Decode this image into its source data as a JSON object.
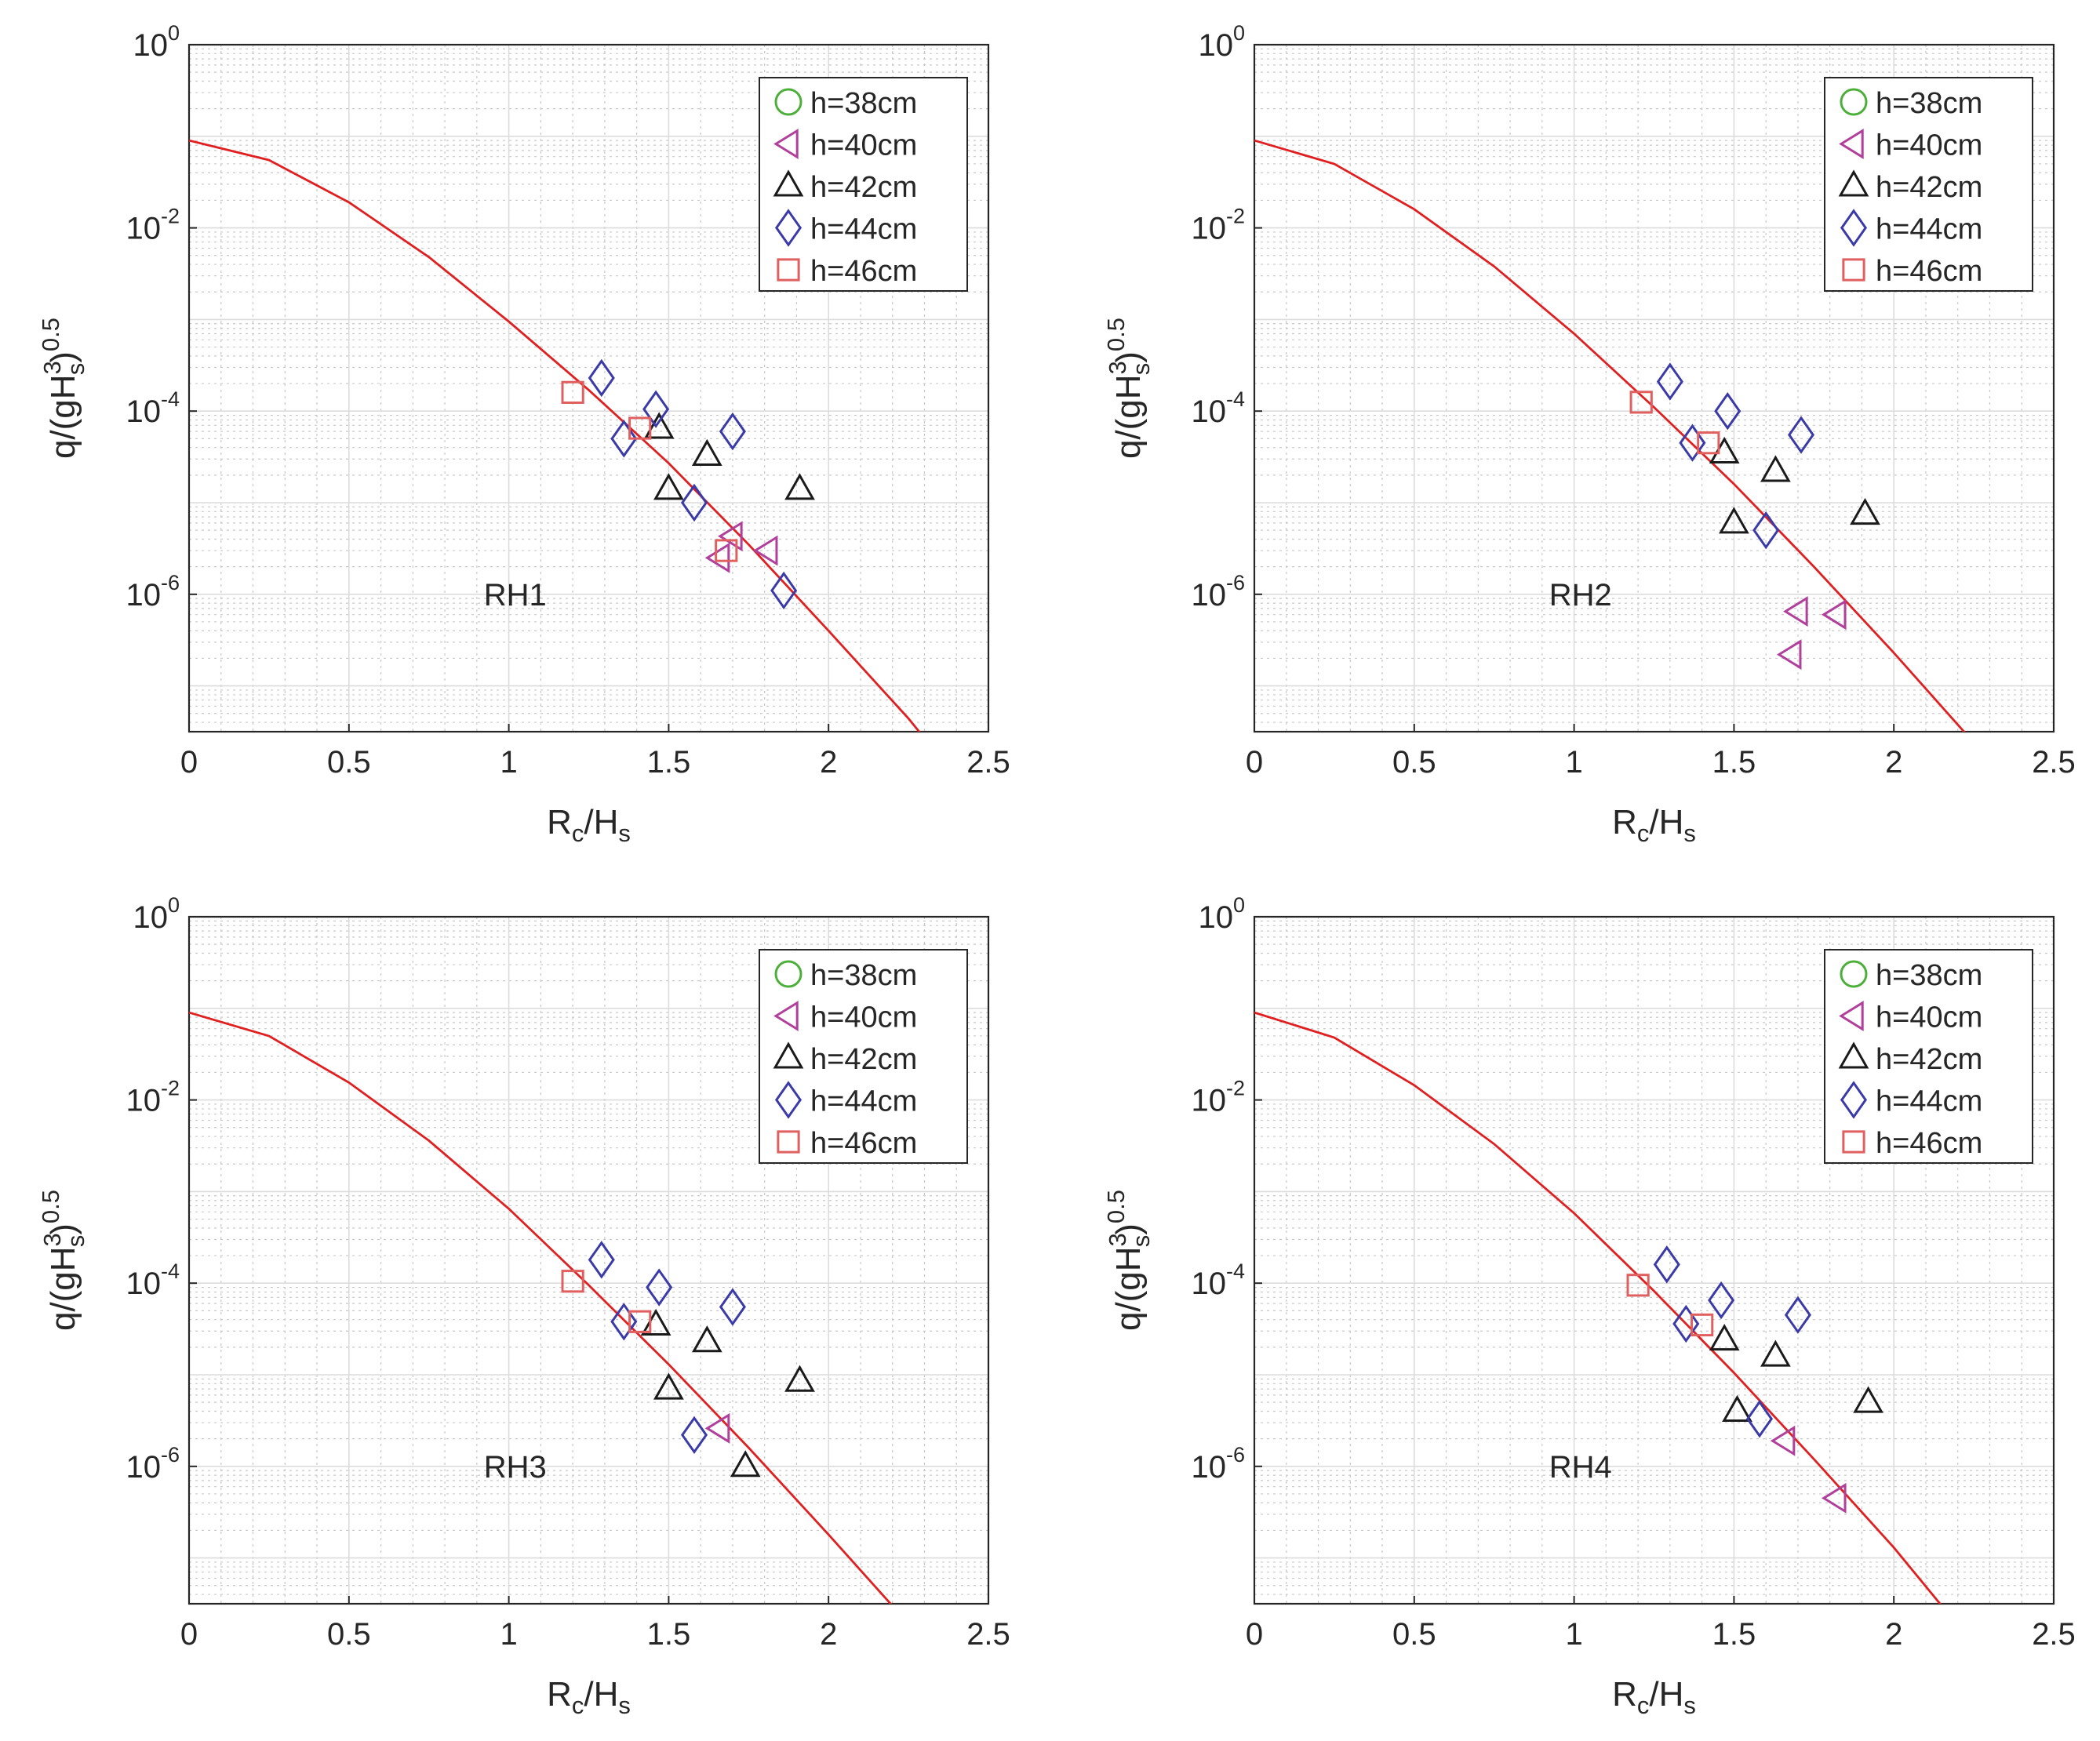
{
  "chart_data": [
    {
      "type": "scatter",
      "panel_label": "RH1",
      "xlim": [
        0,
        2.5
      ],
      "ylim_log10": [
        -7.5,
        0
      ],
      "y_scale": "log",
      "grid": "major and minor",
      "legend_position": "top-right",
      "xticks": [
        "0",
        "0.5",
        "1",
        "1.5",
        "2",
        "2.5"
      ],
      "yticks": [
        {
          "base": "10",
          "exp": "-6"
        },
        {
          "base": "10",
          "exp": "-4"
        },
        {
          "base": "10",
          "exp": "-2"
        },
        {
          "base": "10",
          "exp": "0"
        }
      ],
      "xlabel": {
        "main": "R",
        "sub1": "c",
        "mid": "/H",
        "sub2": "s"
      },
      "ylabel": {
        "pre": "q/(gH",
        "sup1": "3",
        "sub1": "s",
        "post": ")",
        "sup2": "0.5"
      },
      "series": [
        {
          "name": "h=38cm",
          "marker": "circle",
          "color": "#4caf3a",
          "points": []
        },
        {
          "name": "h=40cm",
          "marker": "triangle-left",
          "color": "#b0409c",
          "points": [
            [
              1.7,
              4.3e-06
            ],
            [
              1.81,
              3e-06
            ],
            [
              1.66,
              2.5e-06
            ]
          ]
        },
        {
          "name": "h=42cm",
          "marker": "triangle-up",
          "color": "#1a1a1a",
          "points": [
            [
              1.47,
              6.5e-05
            ],
            [
              1.62,
              3.3e-05
            ],
            [
              1.5,
              1.4e-05
            ],
            [
              1.91,
              1.4e-05
            ]
          ]
        },
        {
          "name": "h=44cm",
          "marker": "diamond",
          "color": "#3a3aa8",
          "points": [
            [
              1.29,
              0.00023
            ],
            [
              1.46,
              0.000105
            ],
            [
              1.7,
              6e-05
            ],
            [
              1.36,
              5e-05
            ],
            [
              1.58,
              1e-05
            ],
            [
              1.86,
              1.1e-06
            ]
          ]
        },
        {
          "name": "h=46cm",
          "marker": "square",
          "color": "#e06060",
          "points": [
            [
              1.2,
              0.00016
            ],
            [
              1.41,
              6.5e-05
            ],
            [
              1.68,
              3e-06
            ]
          ]
        }
      ],
      "curve": {
        "color": "#e02020",
        "x": [
          0,
          0.25,
          0.5,
          0.75,
          1.0,
          1.25,
          1.5,
          1.75,
          2.0,
          2.25,
          2.4
        ],
        "y": [
          0.09,
          0.055,
          0.019,
          0.0048,
          0.00095,
          0.00017,
          2.7e-05,
          3.5e-06,
          4e-07,
          4.4e-08,
          1e-08
        ]
      }
    },
    {
      "type": "scatter",
      "panel_label": "RH2",
      "xlim": [
        0,
        2.5
      ],
      "ylim_log10": [
        -7.5,
        0
      ],
      "y_scale": "log",
      "grid": "major and minor",
      "legend_position": "top-right",
      "xticks": [
        "0",
        "0.5",
        "1",
        "1.5",
        "2",
        "2.5"
      ],
      "yticks": [
        {
          "base": "10",
          "exp": "-6"
        },
        {
          "base": "10",
          "exp": "-4"
        },
        {
          "base": "10",
          "exp": "-2"
        },
        {
          "base": "10",
          "exp": "0"
        }
      ],
      "xlabel": {
        "main": "R",
        "sub1": "c",
        "mid": "/H",
        "sub2": "s"
      },
      "ylabel": {
        "pre": "q/(gH",
        "sup1": "3",
        "sub1": "s",
        "post": ")",
        "sup2": "0.5"
      },
      "series": [
        {
          "name": "h=38cm",
          "marker": "circle",
          "color": "#4caf3a",
          "points": []
        },
        {
          "name": "h=40cm",
          "marker": "triangle-left",
          "color": "#b0409c",
          "points": [
            [
              1.7,
              6.5e-07
            ],
            [
              1.82,
              6e-07
            ],
            [
              1.68,
              2.2e-07
            ]
          ]
        },
        {
          "name": "h=42cm",
          "marker": "triangle-up",
          "color": "#1a1a1a",
          "points": [
            [
              1.47,
              3.5e-05
            ],
            [
              1.63,
              2.2e-05
            ],
            [
              1.5,
              6e-06
            ],
            [
              1.91,
              7.5e-06
            ]
          ]
        },
        {
          "name": "h=44cm",
          "marker": "diamond",
          "color": "#3a3aa8",
          "points": [
            [
              1.3,
              0.00021
            ],
            [
              1.48,
              0.0001
            ],
            [
              1.71,
              5.5e-05
            ],
            [
              1.37,
              4.5e-05
            ],
            [
              1.6,
              5e-06
            ]
          ]
        },
        {
          "name": "h=46cm",
          "marker": "square",
          "color": "#e06060",
          "points": [
            [
              1.21,
              0.000125
            ],
            [
              1.42,
              4.5e-05
            ]
          ]
        }
      ],
      "curve": {
        "color": "#e02020",
        "x": [
          0,
          0.25,
          0.5,
          0.75,
          1.0,
          1.25,
          1.5,
          1.75,
          2.0,
          2.25,
          2.35
        ],
        "y": [
          0.09,
          0.05,
          0.016,
          0.0038,
          0.0007,
          0.00011,
          1.6e-05,
          2e-06,
          2.3e-07,
          2.4e-08,
          1e-08
        ]
      }
    },
    {
      "type": "scatter",
      "panel_label": "RH3",
      "xlim": [
        0,
        2.5
      ],
      "ylim_log10": [
        -7.5,
        0
      ],
      "y_scale": "log",
      "grid": "major and minor",
      "legend_position": "top-right",
      "xticks": [
        "0",
        "0.5",
        "1",
        "1.5",
        "2",
        "2.5"
      ],
      "yticks": [
        {
          "base": "10",
          "exp": "-6"
        },
        {
          "base": "10",
          "exp": "-4"
        },
        {
          "base": "10",
          "exp": "-2"
        },
        {
          "base": "10",
          "exp": "0"
        }
      ],
      "xlabel": {
        "main": "R",
        "sub1": "c",
        "mid": "/H",
        "sub2": "s"
      },
      "ylabel": {
        "pre": "q/(gH",
        "sup1": "3",
        "sub1": "s",
        "post": ")",
        "sup2": "0.5"
      },
      "series": [
        {
          "name": "h=38cm",
          "marker": "circle",
          "color": "#4caf3a",
          "points": []
        },
        {
          "name": "h=40cm",
          "marker": "triangle-left",
          "color": "#b0409c",
          "points": [
            [
              1.66,
              2.6e-06
            ]
          ]
        },
        {
          "name": "h=42cm",
          "marker": "triangle-up",
          "color": "#1a1a1a",
          "points": [
            [
              1.46,
              3.5e-05
            ],
            [
              1.62,
              2.3e-05
            ],
            [
              1.5,
              7e-06
            ],
            [
              1.91,
              8.5e-06
            ],
            [
              1.74,
              1e-06
            ]
          ]
        },
        {
          "name": "h=44cm",
          "marker": "diamond",
          "color": "#3a3aa8",
          "points": [
            [
              1.29,
              0.00018
            ],
            [
              1.47,
              9e-05
            ],
            [
              1.7,
              5.5e-05
            ],
            [
              1.36,
              3.8e-05
            ],
            [
              1.58,
              2.2e-06
            ]
          ]
        },
        {
          "name": "h=46cm",
          "marker": "square",
          "color": "#e06060",
          "points": [
            [
              1.2,
              0.000105
            ],
            [
              1.41,
              3.8e-05
            ]
          ]
        }
      ],
      "curve": {
        "color": "#e02020",
        "x": [
          0,
          0.25,
          0.5,
          0.75,
          1.0,
          1.25,
          1.5,
          1.75,
          2.0,
          2.2,
          2.29
        ],
        "y": [
          0.09,
          0.05,
          0.0155,
          0.0036,
          0.00065,
          9.5e-05,
          1.3e-05,
          1.6e-06,
          1.8e-07,
          3e-08,
          1e-08
        ]
      }
    },
    {
      "type": "scatter",
      "panel_label": "RH4",
      "xlim": [
        0,
        2.5
      ],
      "ylim_log10": [
        -7.5,
        0
      ],
      "y_scale": "log",
      "grid": "major and minor",
      "legend_position": "top-right",
      "xticks": [
        "0",
        "0.5",
        "1",
        "1.5",
        "2",
        "2.5"
      ],
      "yticks": [
        {
          "base": "10",
          "exp": "-6"
        },
        {
          "base": "10",
          "exp": "-4"
        },
        {
          "base": "10",
          "exp": "-2"
        },
        {
          "base": "10",
          "exp": "0"
        }
      ],
      "xlabel": {
        "main": "R",
        "sub1": "c",
        "mid": "/H",
        "sub2": "s"
      },
      "ylabel": {
        "pre": "q/(gH",
        "sup1": "3",
        "sub1": "s",
        "post": ")",
        "sup2": "0.5"
      },
      "series": [
        {
          "name": "h=38cm",
          "marker": "circle",
          "color": "#4caf3a",
          "points": []
        },
        {
          "name": "h=40cm",
          "marker": "triangle-left",
          "color": "#b0409c",
          "points": [
            [
              1.66,
              1.9e-06
            ],
            [
              1.82,
              4.5e-07
            ]
          ]
        },
        {
          "name": "h=42cm",
          "marker": "triangle-up",
          "color": "#1a1a1a",
          "points": [
            [
              1.47,
              2.4e-05
            ],
            [
              1.63,
              1.6e-05
            ],
            [
              1.51,
              4e-06
            ],
            [
              1.92,
              5e-06
            ]
          ]
        },
        {
          "name": "h=44cm",
          "marker": "diamond",
          "color": "#3a3aa8",
          "points": [
            [
              1.29,
              0.00016
            ],
            [
              1.46,
              6.5e-05
            ],
            [
              1.7,
              4.5e-05
            ],
            [
              1.35,
              3.6e-05
            ],
            [
              1.58,
              3.3e-06
            ]
          ]
        },
        {
          "name": "h=46cm",
          "marker": "square",
          "color": "#e06060",
          "points": [
            [
              1.2,
              9.5e-05
            ],
            [
              1.4,
              3.5e-05
            ]
          ]
        }
      ],
      "curve": {
        "color": "#e02020",
        "x": [
          0,
          0.25,
          0.5,
          0.75,
          1.0,
          1.25,
          1.5,
          1.75,
          2.0,
          2.15,
          2.23
        ],
        "y": [
          0.09,
          0.048,
          0.0145,
          0.0033,
          0.00058,
          8.2e-05,
          1.05e-05,
          1.2e-06,
          1.3e-07,
          3e-08,
          1e-08
        ]
      }
    }
  ]
}
